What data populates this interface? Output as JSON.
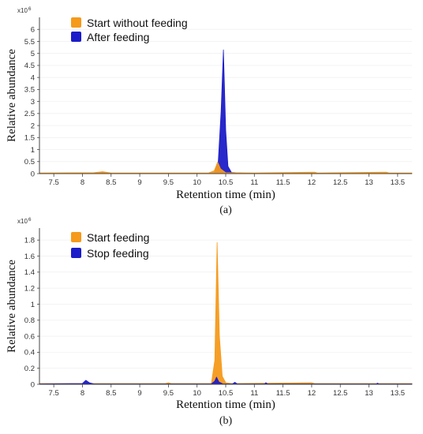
{
  "chart_data": [
    {
      "type": "area",
      "panel_label": "(a)",
      "multiplier_base": "x10",
      "multiplier_exp": "6",
      "xlabel": "Retention time (min)",
      "ylabel": "Relative abundance",
      "xlim": [
        7.25,
        13.75
      ],
      "ylim": [
        0,
        6.5
      ],
      "x_ticks": [
        7.5,
        8,
        8.5,
        9,
        9.5,
        10,
        10.5,
        11,
        11.5,
        12,
        12.5,
        13,
        13.5
      ],
      "y_ticks": [
        0,
        0.5,
        1,
        1.5,
        2,
        2.5,
        3,
        3.5,
        4,
        4.5,
        5,
        5.5,
        6
      ],
      "legend_position": "top-left",
      "series": [
        {
          "name": "Start without feeding",
          "color": "#f59a1b",
          "points": [
            [
              7.25,
              0.03
            ],
            [
              8.2,
              0.04
            ],
            [
              8.35,
              0.08
            ],
            [
              8.5,
              0.03
            ],
            [
              10.2,
              0.03
            ],
            [
              10.3,
              0.12
            ],
            [
              10.36,
              0.48
            ],
            [
              10.41,
              0.2
            ],
            [
              10.5,
              0.04
            ],
            [
              11.0,
              0.03
            ],
            [
              12.05,
              0.06
            ],
            [
              12.1,
              0.03
            ],
            [
              13.3,
              0.06
            ],
            [
              13.35,
              0.03
            ],
            [
              13.75,
              0.03
            ]
          ]
        },
        {
          "name": "After feeding",
          "color": "#1c1cc8",
          "points": [
            [
              7.25,
              0.0
            ],
            [
              8.2,
              0.01
            ],
            [
              8.35,
              0.05
            ],
            [
              8.5,
              0.01
            ],
            [
              10.3,
              0.02
            ],
            [
              10.37,
              0.5
            ],
            [
              10.42,
              2.6
            ],
            [
              10.46,
              5.15
            ],
            [
              10.5,
              1.8
            ],
            [
              10.54,
              0.3
            ],
            [
              10.6,
              0.05
            ],
            [
              10.8,
              0.02
            ],
            [
              13.75,
              0.0
            ]
          ]
        }
      ]
    },
    {
      "type": "area",
      "panel_label": "(b)",
      "multiplier_base": "x10",
      "multiplier_exp": "6",
      "xlabel": "Retention time (min)",
      "ylabel": "Relative abundance",
      "xlim": [
        7.25,
        13.75
      ],
      "ylim": [
        0,
        1.95
      ],
      "x_ticks": [
        7.5,
        8,
        8.5,
        9,
        9.5,
        10,
        10.5,
        11,
        11.5,
        12,
        12.5,
        13,
        13.5
      ],
      "y_ticks": [
        0,
        0.2,
        0.4,
        0.6,
        0.8,
        1,
        1.2,
        1.4,
        1.6,
        1.8
      ],
      "legend_position": "top-left",
      "series": [
        {
          "name": "Start feeding",
          "color": "#f59a1b",
          "points": [
            [
              7.25,
              0.01
            ],
            [
              9.45,
              0.01
            ],
            [
              9.5,
              0.02
            ],
            [
              9.55,
              0.01
            ],
            [
              10.25,
              0.01
            ],
            [
              10.31,
              0.3
            ],
            [
              10.35,
              1.77
            ],
            [
              10.39,
              0.6
            ],
            [
              10.44,
              0.1
            ],
            [
              10.5,
              0.02
            ],
            [
              10.6,
              0.01
            ],
            [
              12.0,
              0.02
            ],
            [
              12.05,
              0.01
            ],
            [
              13.75,
              0.01
            ]
          ]
        },
        {
          "name": "Stop feeding",
          "color": "#1c1cc8",
          "points": [
            [
              7.25,
              0.005
            ],
            [
              8.0,
              0.01
            ],
            [
              8.06,
              0.05
            ],
            [
              8.12,
              0.02
            ],
            [
              8.2,
              0.005
            ],
            [
              10.25,
              0.005
            ],
            [
              10.31,
              0.04
            ],
            [
              10.34,
              0.09
            ],
            [
              10.38,
              0.03
            ],
            [
              10.45,
              0.005
            ],
            [
              10.62,
              0.005
            ],
            [
              10.66,
              0.025
            ],
            [
              10.7,
              0.005
            ],
            [
              11.18,
              0.005
            ],
            [
              11.2,
              0.02
            ],
            [
              11.23,
              0.005
            ],
            [
              13.13,
              0.005
            ],
            [
              13.15,
              0.015
            ],
            [
              13.17,
              0.005
            ],
            [
              13.75,
              0.005
            ]
          ]
        }
      ]
    }
  ]
}
